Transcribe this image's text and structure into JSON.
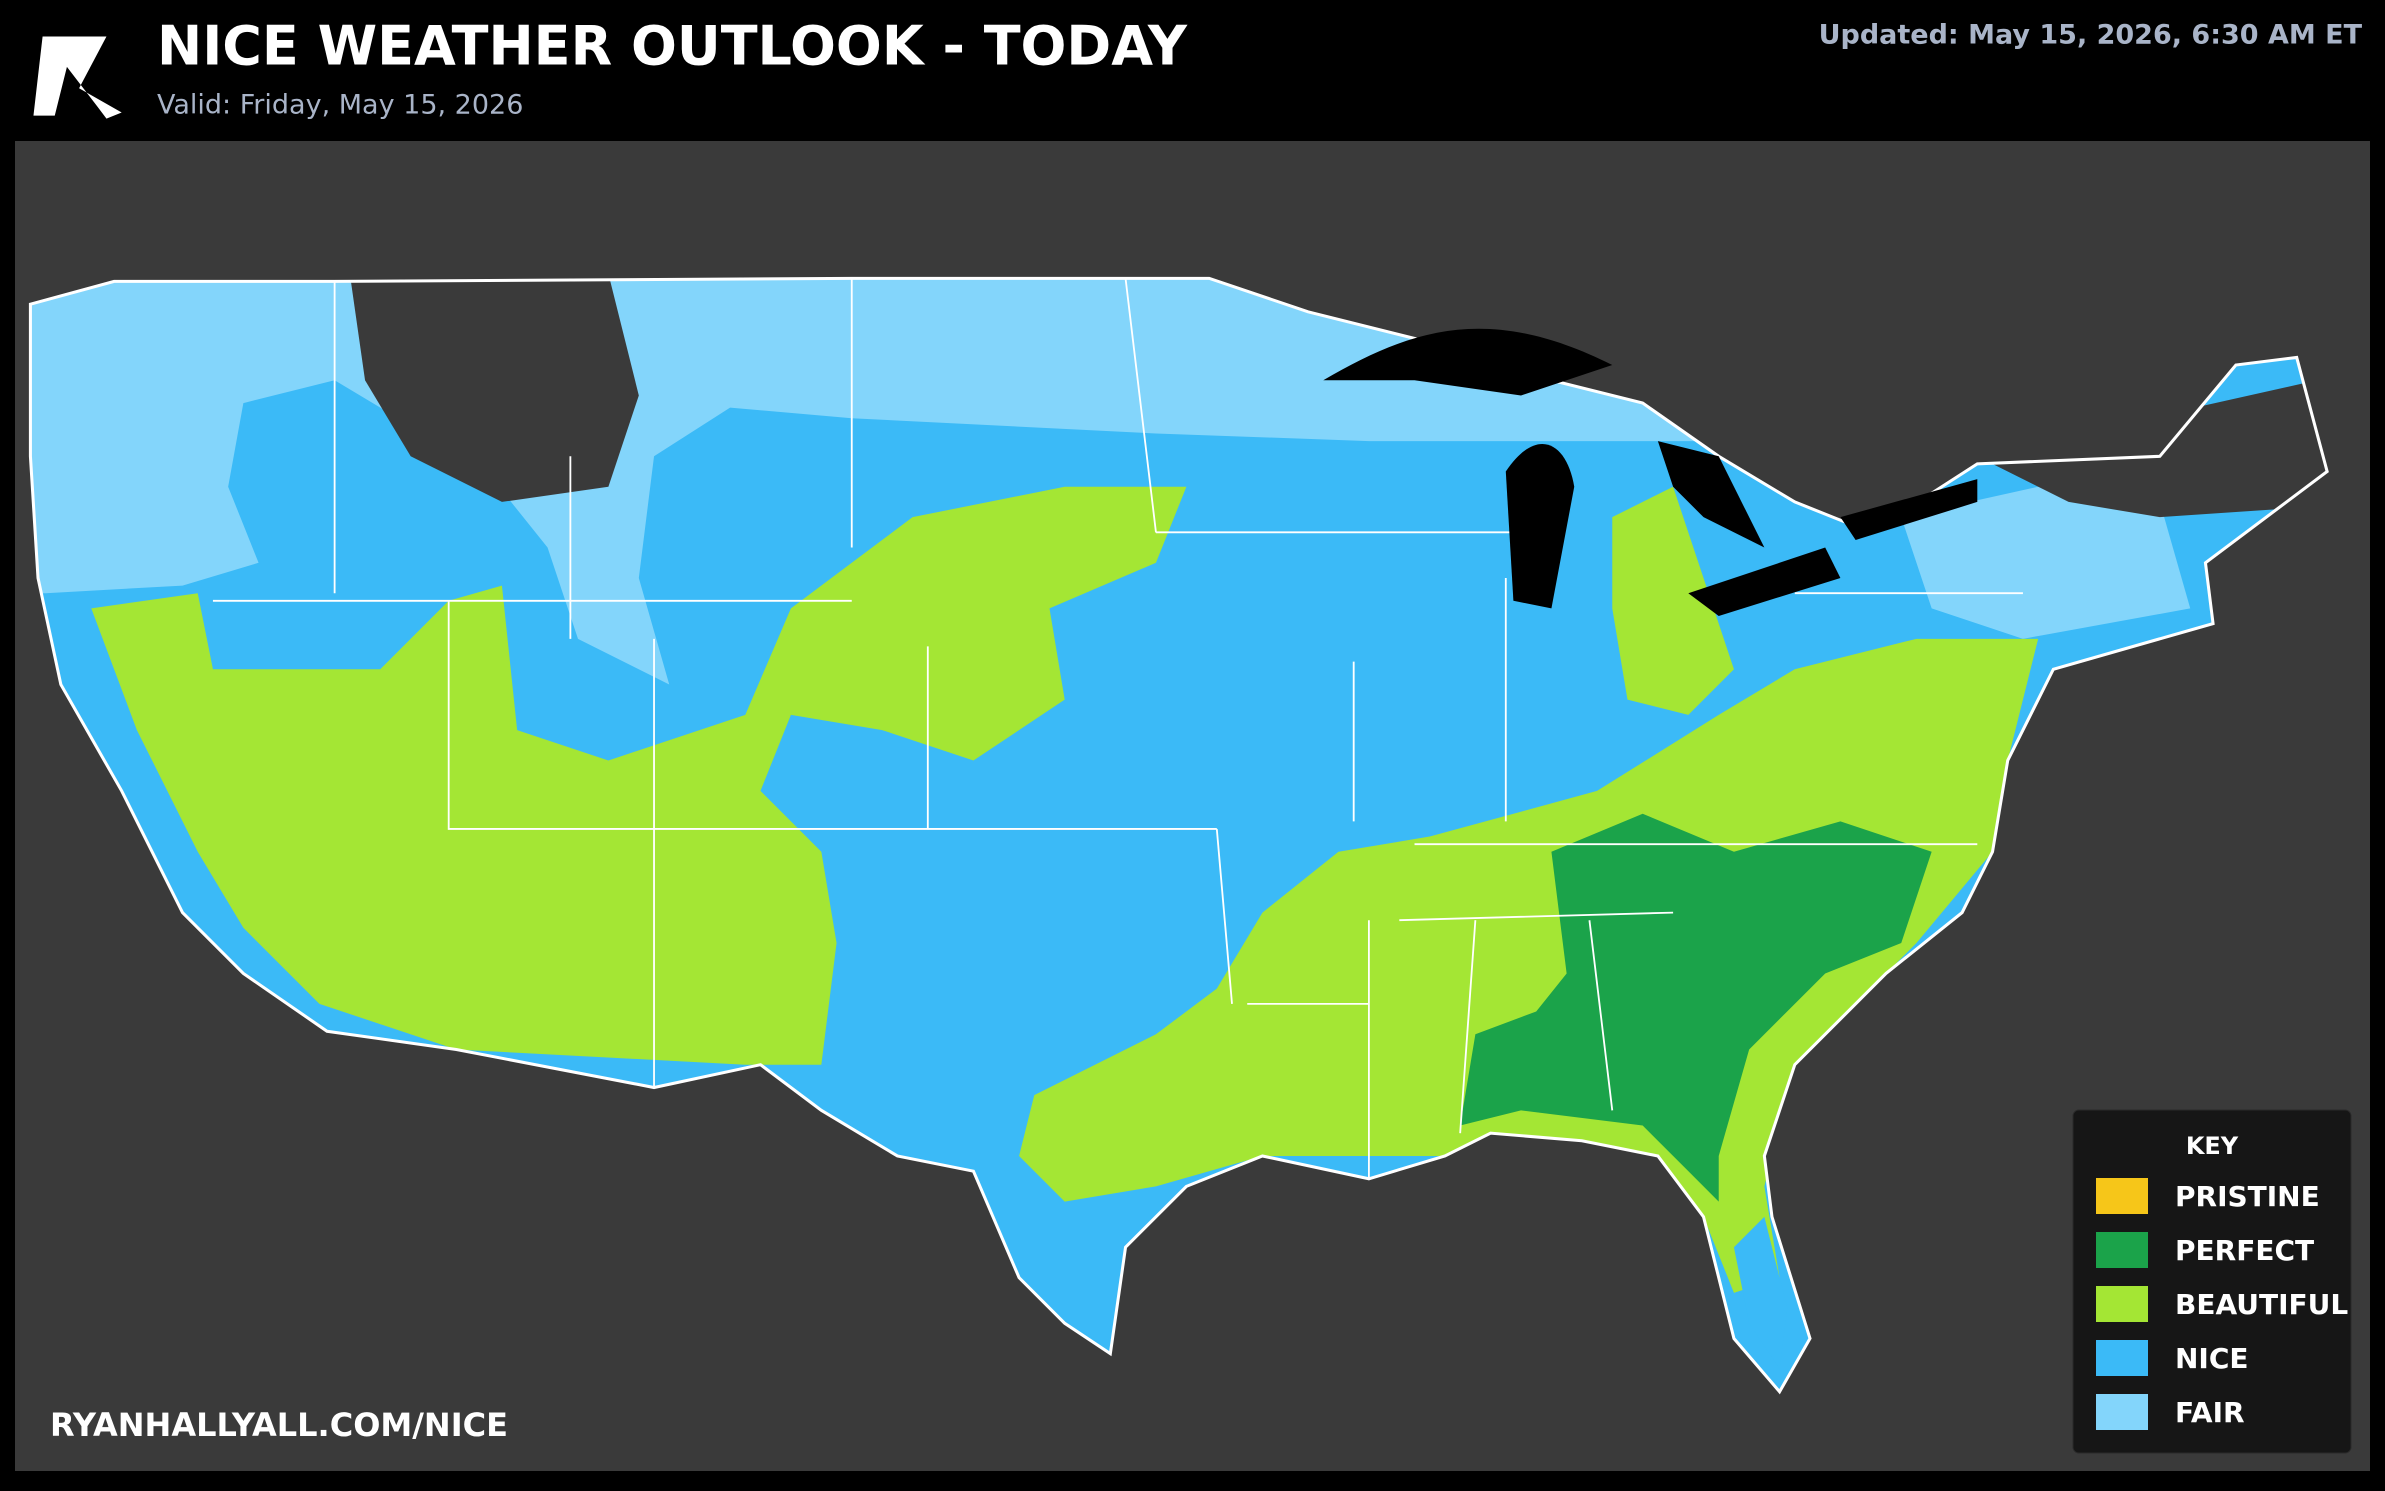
{
  "header": {
    "title": "NICE WEATHER OUTLOOK - TODAY",
    "subtitle": "Valid: Friday, May 15, 2026",
    "updated": "Updated: May 15, 2026, 6:30 AM ET"
  },
  "footer": {
    "url": "RYANHALLYALL.COM/NICE"
  },
  "legend": {
    "title": "KEY",
    "items": [
      {
        "label": "PRISTINE",
        "color": "#f6c619"
      },
      {
        "label": "PERFECT",
        "color": "#1ba34a"
      },
      {
        "label": "BEAUTIFUL",
        "color": "#a4e634"
      },
      {
        "label": "NICE",
        "color": "#3bbaf7"
      },
      {
        "label": "FAIR",
        "color": "#83d5fb"
      }
    ]
  }
}
